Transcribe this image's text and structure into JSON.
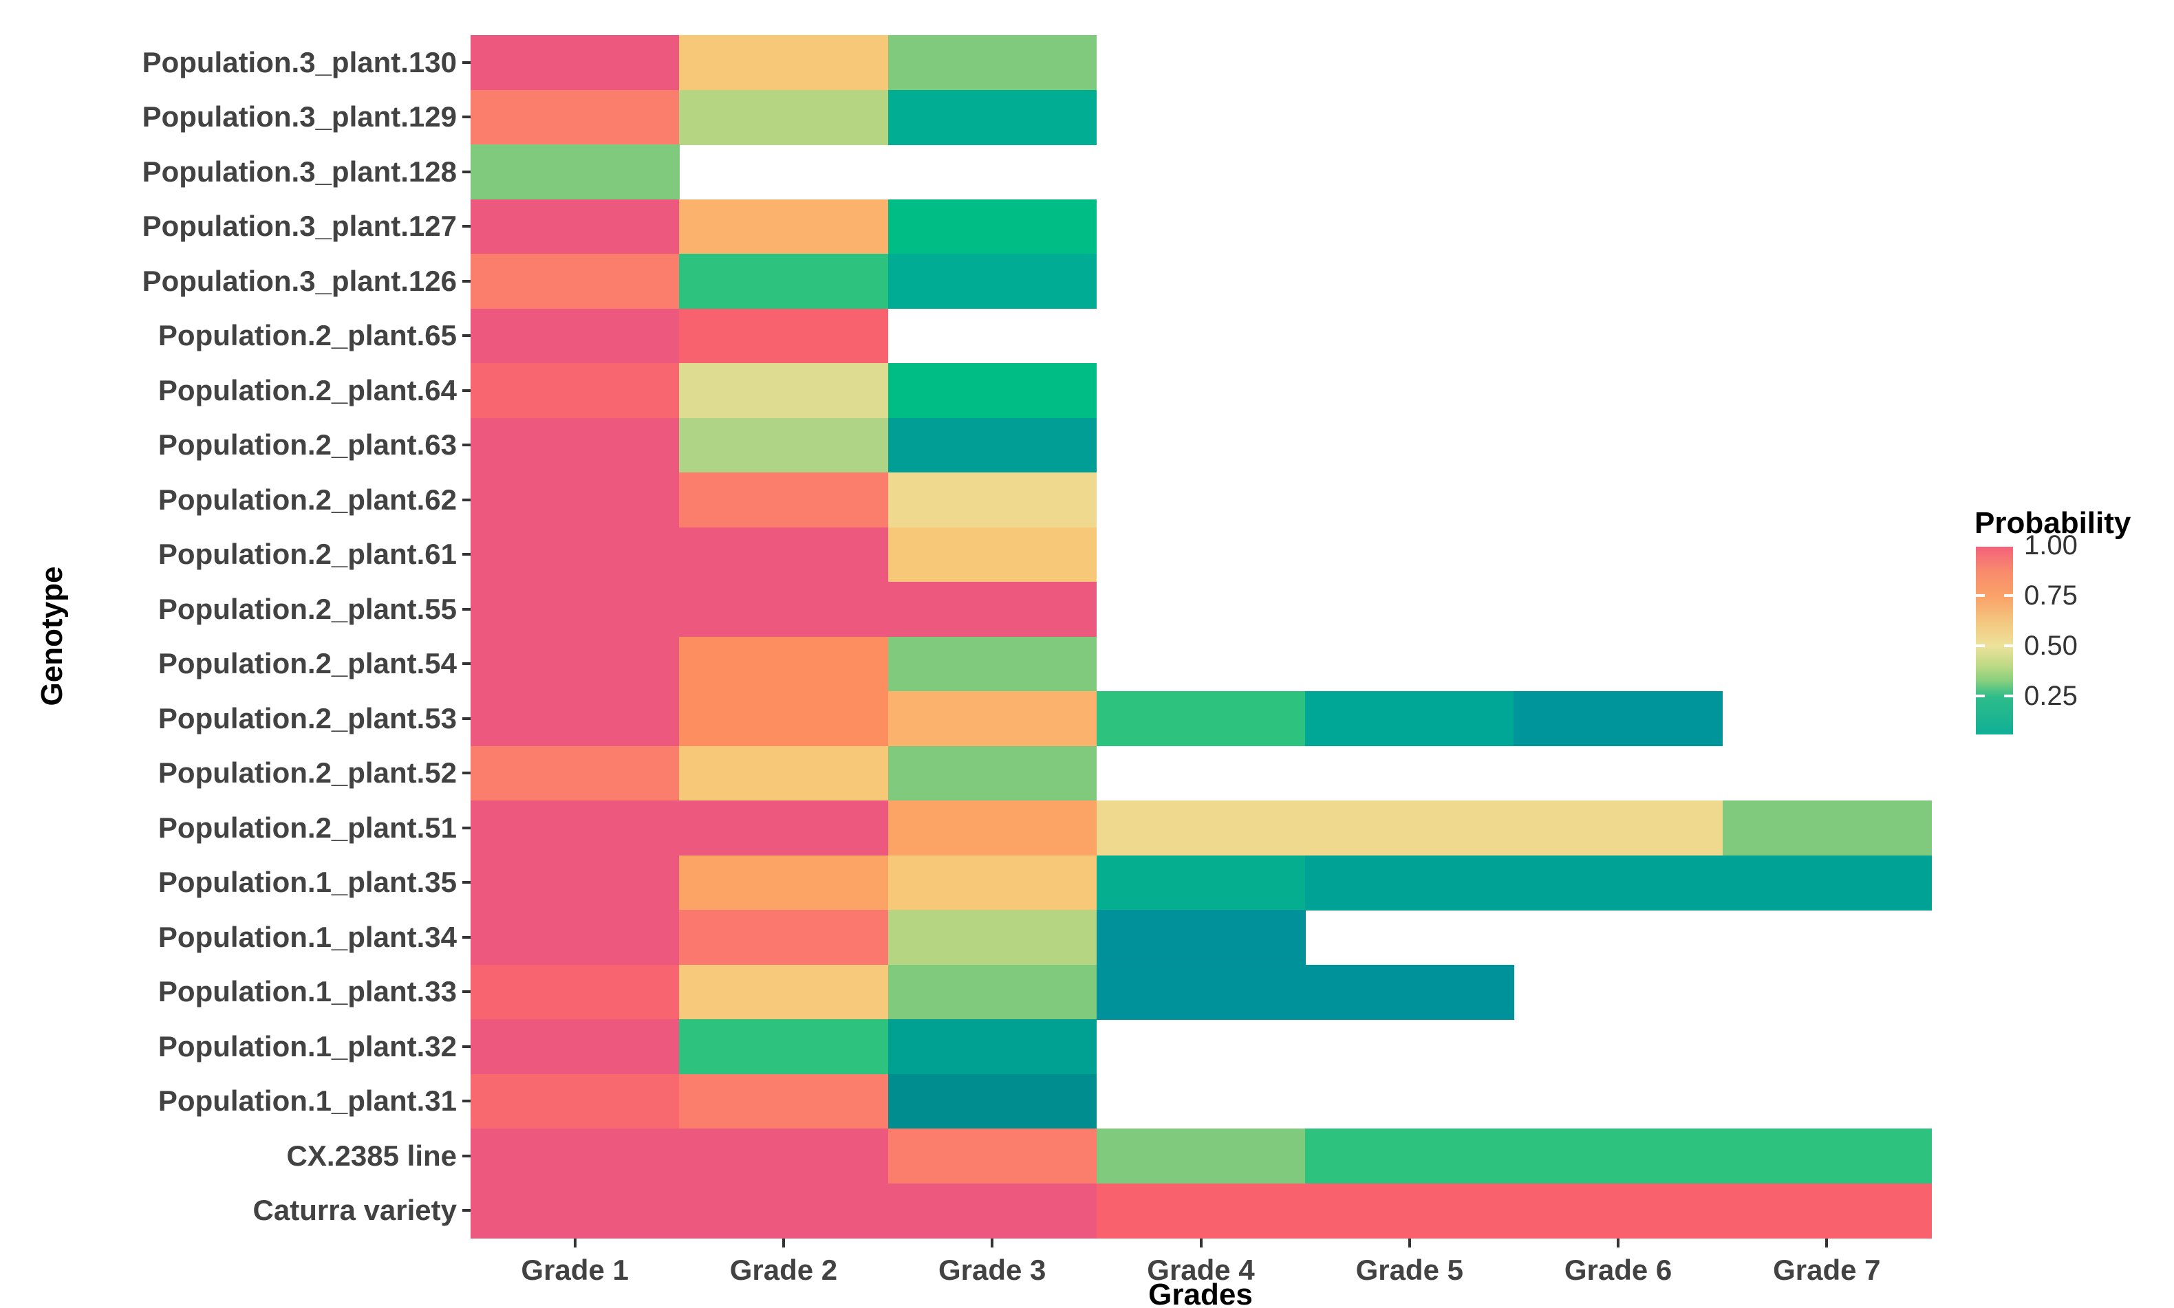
{
  "figure": {
    "y_axis_title": "Genotype",
    "x_axis_title": "Grades",
    "legend": {
      "title": "Probability",
      "tick_labels": [
        "1.00",
        "0.75",
        "0.50",
        "0.25"
      ]
    }
  },
  "chart_data": {
    "type": "heatmap",
    "title": "",
    "xlabel": "Grades",
    "ylabel": "Genotype",
    "x_categories": [
      "Grade 1",
      "Grade 2",
      "Grade 3",
      "Grade 4",
      "Grade 5",
      "Grade 6",
      "Grade 7"
    ],
    "y_categories_top_to_bottom": [
      "Population.3_plant.130",
      "Population.3_plant.129",
      "Population.3_plant.128",
      "Population.3_plant.127",
      "Population.3_plant.126",
      "Population.2_plant.65",
      "Population.2_plant.64",
      "Population.2_plant.63",
      "Population.2_plant.62",
      "Population.2_plant.61",
      "Population.2_plant.55",
      "Population.2_plant.54",
      "Population.2_plant.53",
      "Population.2_plant.52",
      "Population.2_plant.51",
      "Population.1_plant.35",
      "Population.1_plant.34",
      "Population.1_plant.33",
      "Population.1_plant.32",
      "Population.1_plant.31",
      "CX.2385 line",
      "Caturra variety"
    ],
    "legend": {
      "title": "Probability",
      "tick_values": [
        1.0,
        0.75,
        0.5,
        0.25
      ],
      "tick_labels": [
        "1.00",
        "0.75",
        "0.50",
        "0.25"
      ],
      "gradient_top_to_bottom": [
        {
          "color": "#F4617C",
          "at": 0.0
        },
        {
          "color": "#F88A6C",
          "at": 0.13
        },
        {
          "color": "#FAA369",
          "at": 0.27
        },
        {
          "color": "#F3C77F",
          "at": 0.4
        },
        {
          "color": "#EDE29B",
          "at": 0.53
        },
        {
          "color": "#BFDA85",
          "at": 0.63
        },
        {
          "color": "#8BD07D",
          "at": 0.71
        },
        {
          "color": "#2DBC89",
          "at": 0.8
        },
        {
          "color": "#10AF97",
          "at": 1.0
        }
      ]
    },
    "grid": false,
    "missing_color": "#FFFFFF",
    "rows": [
      {
        "label": "Population.3_plant.130",
        "cells": [
          {
            "p": 1.0,
            "color": "#ED587E"
          },
          {
            "p": 0.7,
            "color": "#F6C877"
          },
          {
            "p": 0.42,
            "color": "#80CA7E"
          },
          null,
          null,
          null,
          null
        ]
      },
      {
        "label": "Population.3_plant.129",
        "cells": [
          {
            "p": 0.92,
            "color": "#FA7E6B"
          },
          {
            "p": 0.48,
            "color": "#B5D583"
          },
          {
            "p": 0.24,
            "color": "#01AE93"
          },
          null,
          null,
          null,
          null
        ]
      },
      {
        "label": "Population.3_plant.128",
        "cells": [
          {
            "p": 0.42,
            "color": "#80CA7E"
          },
          null,
          null,
          null,
          null,
          null,
          null
        ]
      },
      {
        "label": "Population.3_plant.127",
        "cells": [
          {
            "p": 1.0,
            "color": "#ED587E"
          },
          {
            "p": 0.76,
            "color": "#FBB26C"
          },
          {
            "p": 0.3,
            "color": "#00BC85"
          },
          null,
          null,
          null,
          null
        ]
      },
      {
        "label": "Population.3_plant.126",
        "cells": [
          {
            "p": 0.92,
            "color": "#FA7E6B"
          },
          {
            "p": 0.33,
            "color": "#2EC27F"
          },
          {
            "p": 0.24,
            "color": "#00AC94"
          },
          null,
          null,
          null,
          null
        ]
      },
      {
        "label": "Population.2_plant.65",
        "cells": [
          {
            "p": 1.0,
            "color": "#ED587E"
          },
          {
            "p": 0.97,
            "color": "#F8616E"
          },
          null,
          null,
          null,
          null,
          null
        ]
      },
      {
        "label": "Population.2_plant.64",
        "cells": [
          {
            "p": 0.97,
            "color": "#F8676F"
          },
          {
            "p": 0.55,
            "color": "#DDDC90"
          },
          {
            "p": 0.3,
            "color": "#00BC85"
          },
          null,
          null,
          null,
          null
        ]
      },
      {
        "label": "Population.2_plant.63",
        "cells": [
          {
            "p": 1.0,
            "color": "#ED587E"
          },
          {
            "p": 0.47,
            "color": "#AFD486"
          },
          {
            "p": 0.2,
            "color": "#009E95"
          },
          null,
          null,
          null,
          null
        ]
      },
      {
        "label": "Population.2_plant.62",
        "cells": [
          {
            "p": 1.0,
            "color": "#ED587E"
          },
          {
            "p": 0.92,
            "color": "#FA7E6B"
          },
          {
            "p": 0.62,
            "color": "#EFD98E"
          },
          null,
          null,
          null,
          null
        ]
      },
      {
        "label": "Population.2_plant.61",
        "cells": [
          {
            "p": 1.0,
            "color": "#ED587E"
          },
          {
            "p": 1.0,
            "color": "#ED587E"
          },
          {
            "p": 0.7,
            "color": "#F6C877"
          },
          null,
          null,
          null,
          null
        ]
      },
      {
        "label": "Population.2_plant.55",
        "cells": [
          {
            "p": 1.0,
            "color": "#ED587E"
          },
          {
            "p": 1.0,
            "color": "#ED587E"
          },
          {
            "p": 1.0,
            "color": "#ED587E"
          },
          null,
          null,
          null,
          null
        ]
      },
      {
        "label": "Population.2_plant.54",
        "cells": [
          {
            "p": 1.0,
            "color": "#ED587E"
          },
          {
            "p": 0.85,
            "color": "#FC8E60"
          },
          {
            "p": 0.42,
            "color": "#80CA7E"
          },
          null,
          null,
          null,
          null
        ]
      },
      {
        "label": "Population.2_plant.53",
        "cells": [
          {
            "p": 1.0,
            "color": "#ED587E"
          },
          {
            "p": 0.85,
            "color": "#FC8E60"
          },
          {
            "p": 0.76,
            "color": "#FBB26C"
          },
          {
            "p": 0.33,
            "color": "#2EC27F"
          },
          {
            "p": 0.23,
            "color": "#01A796"
          },
          {
            "p": 0.15,
            "color": "#00949B"
          },
          null
        ]
      },
      {
        "label": "Population.2_plant.52",
        "cells": [
          {
            "p": 0.92,
            "color": "#FA7E6B"
          },
          {
            "p": 0.7,
            "color": "#F6C877"
          },
          {
            "p": 0.42,
            "color": "#80CA7E"
          },
          null,
          null,
          null,
          null
        ]
      },
      {
        "label": "Population.2_plant.51",
        "cells": [
          {
            "p": 1.0,
            "color": "#ED587E"
          },
          {
            "p": 1.0,
            "color": "#ED587E"
          },
          {
            "p": 0.8,
            "color": "#FCA465"
          },
          {
            "p": 0.62,
            "color": "#EFD98E"
          },
          {
            "p": 0.62,
            "color": "#EFD98E"
          },
          {
            "p": 0.62,
            "color": "#EFD98E"
          },
          {
            "p": 0.42,
            "color": "#80CA7E"
          }
        ]
      },
      {
        "label": "Population.1_plant.35",
        "cells": [
          {
            "p": 1.0,
            "color": "#ED587E"
          },
          {
            "p": 0.8,
            "color": "#FCA465"
          },
          {
            "p": 0.7,
            "color": "#F6C877"
          },
          {
            "p": 0.26,
            "color": "#04AE8F"
          },
          {
            "p": 0.22,
            "color": "#00A295"
          },
          {
            "p": 0.22,
            "color": "#00A295"
          },
          {
            "p": 0.22,
            "color": "#00A295"
          }
        ]
      },
      {
        "label": "Population.1_plant.34",
        "cells": [
          {
            "p": 1.0,
            "color": "#ED587E"
          },
          {
            "p": 0.92,
            "color": "#FA786E"
          },
          {
            "p": 0.48,
            "color": "#B5D583"
          },
          {
            "p": 0.13,
            "color": "#00919A"
          },
          null,
          null,
          null
        ]
      },
      {
        "label": "Population.1_plant.33",
        "cells": [
          {
            "p": 0.97,
            "color": "#F8646F"
          },
          {
            "p": 0.7,
            "color": "#F6C97B"
          },
          {
            "p": 0.42,
            "color": "#80CA7E"
          },
          {
            "p": 0.13,
            "color": "#00929A"
          },
          {
            "p": 0.13,
            "color": "#00929A"
          },
          null,
          null
        ]
      },
      {
        "label": "Population.1_plant.32",
        "cells": [
          {
            "p": 1.0,
            "color": "#ED587E"
          },
          {
            "p": 0.33,
            "color": "#2EC27F"
          },
          {
            "p": 0.24,
            "color": "#00A192"
          },
          null,
          null,
          null,
          null
        ]
      },
      {
        "label": "Population.1_plant.31",
        "cells": [
          {
            "p": 0.97,
            "color": "#F8686F"
          },
          {
            "p": 0.92,
            "color": "#FA7E6B"
          },
          {
            "p": 0.13,
            "color": "#008D90"
          },
          null,
          null,
          null,
          null
        ]
      },
      {
        "label": "CX.2385 line",
        "cells": [
          {
            "p": 1.0,
            "color": "#ED587E"
          },
          {
            "p": 1.0,
            "color": "#ED587E"
          },
          {
            "p": 0.92,
            "color": "#FA7E6B"
          },
          {
            "p": 0.42,
            "color": "#80CA7E"
          },
          {
            "p": 0.33,
            "color": "#2EC27F"
          },
          {
            "p": 0.33,
            "color": "#2EC27F"
          },
          {
            "p": 0.33,
            "color": "#2EC27F"
          }
        ]
      },
      {
        "label": "Caturra variety",
        "cells": [
          {
            "p": 1.0,
            "color": "#ED587E"
          },
          {
            "p": 1.0,
            "color": "#ED587E"
          },
          {
            "p": 1.0,
            "color": "#ED587E"
          },
          {
            "p": 0.97,
            "color": "#F9616C"
          },
          {
            "p": 0.97,
            "color": "#F9616C"
          },
          {
            "p": 0.97,
            "color": "#F9616C"
          },
          {
            "p": 0.97,
            "color": "#F9616C"
          }
        ]
      }
    ]
  }
}
